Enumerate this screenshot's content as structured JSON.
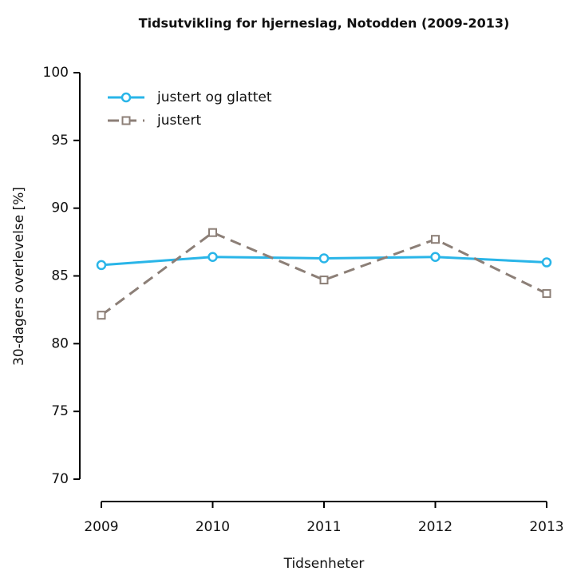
{
  "chart_data": {
    "type": "line",
    "title": "Tidsutvikling for hjerneslag, Notodden (2009-2013)",
    "x_label": "Tidsenheter",
    "y_label": "30-dagers overlevelse [%]",
    "x": [
      2009,
      2010,
      2011,
      2012,
      2013
    ],
    "xlim": [
      2009,
      2013
    ],
    "xticks": [
      2009,
      2010,
      2011,
      2012,
      2013
    ],
    "ylim": [
      70,
      100
    ],
    "yticks": [
      70,
      75,
      80,
      85,
      90,
      95,
      100
    ],
    "legend": "top-left",
    "series": [
      {
        "name": "justert og glattet",
        "color": "#29b5e8",
        "dash": false,
        "marker": "circle",
        "values": [
          85.8,
          86.4,
          86.3,
          86.4,
          86.0
        ]
      },
      {
        "name": "justert",
        "color": "#8c7f77",
        "dash": true,
        "marker": "square",
        "values": [
          82.1,
          88.2,
          84.7,
          87.7,
          83.7
        ]
      }
    ]
  }
}
